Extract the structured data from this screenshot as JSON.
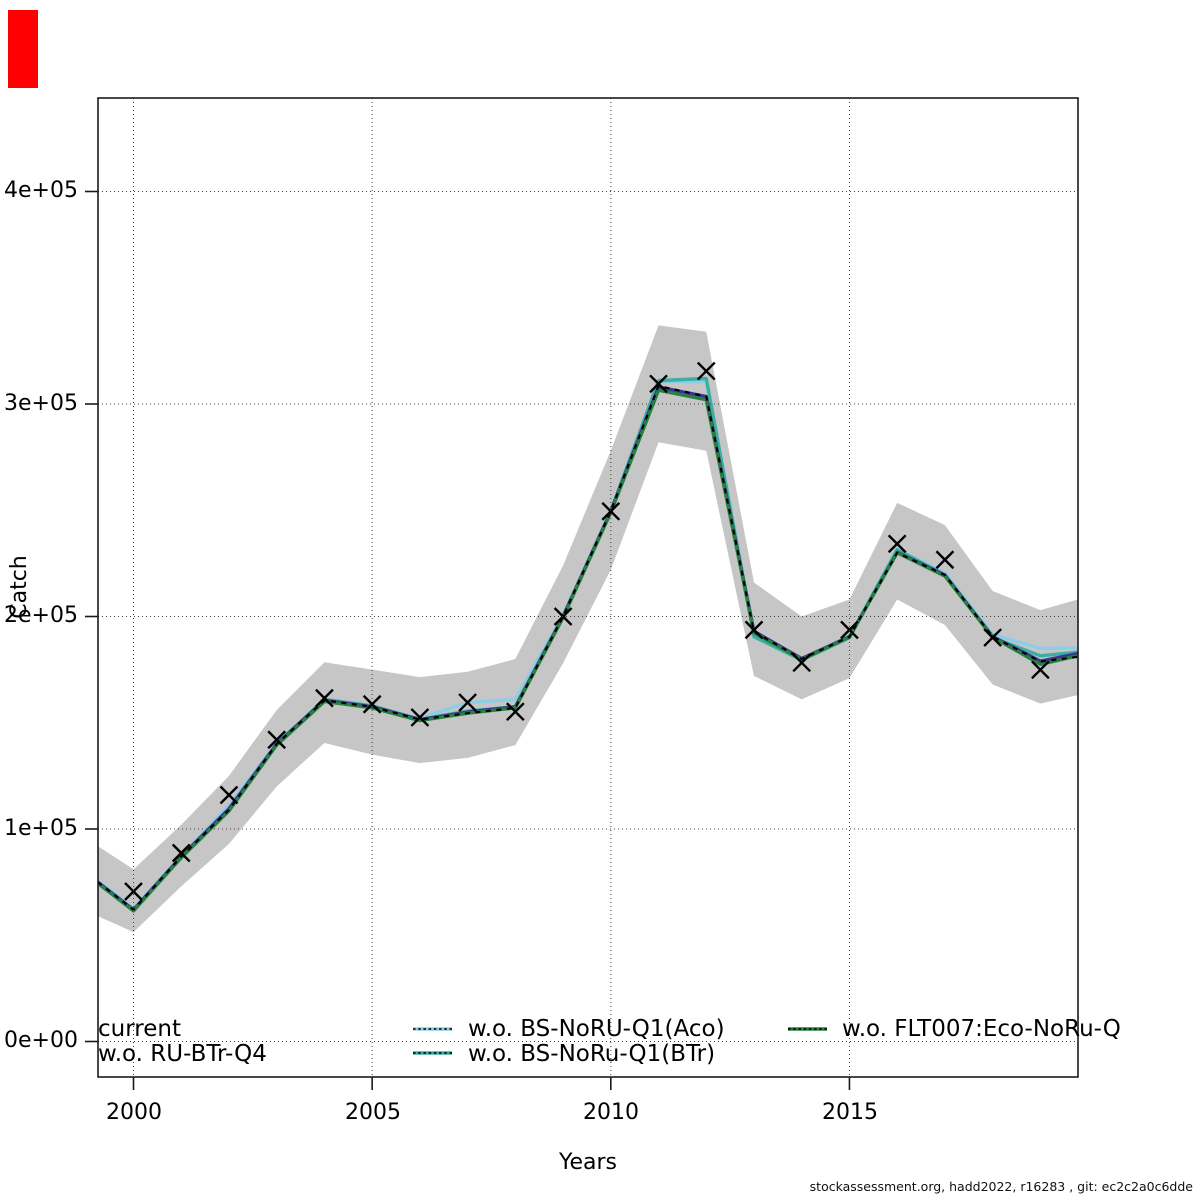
{
  "overlay_marker": {
    "color": "#ff0000"
  },
  "ylabel": "Catch",
  "xlabel": "Years",
  "footer": "stockassessment.org, hadd2022, r16283 , git: ec2c2a0c6dde",
  "axes": {
    "y_ticks": [
      {
        "label": "0e+00",
        "value": 0
      },
      {
        "label": "1e+05",
        "value": 100000
      },
      {
        "label": "2e+05",
        "value": 200000
      },
      {
        "label": "3e+05",
        "value": 300000
      },
      {
        "label": "4e+05",
        "value": 400000
      }
    ],
    "x_ticks": [
      {
        "label": "2000",
        "value": 2000
      },
      {
        "label": "2005",
        "value": 2005
      },
      {
        "label": "2010",
        "value": 2010
      },
      {
        "label": "2015",
        "value": 2015
      }
    ]
  },
  "legend": {
    "entries": [
      {
        "label": "current",
        "color": "#000000",
        "swatch_visible": false
      },
      {
        "label": "w.o. RU-BTr-Q4",
        "color": "#3e3193",
        "swatch_visible": false
      },
      {
        "label": "w.o. BS-NoRU-Q1(Aco)",
        "color": "#8dcde6",
        "swatch_visible": true
      },
      {
        "label": "w.o. BS-NoRu-Q1(BTr)",
        "color": "#3bafa0",
        "swatch_visible": true
      },
      {
        "label": "w.o. FLT007:Eco-NoRu-Q",
        "color": "#26803f",
        "swatch_visible": true
      }
    ]
  },
  "chart_data": {
    "type": "line",
    "title": "",
    "xlabel": "Years",
    "ylabel": "Catch",
    "xlim": [
      1999.25,
      2019.78
    ],
    "ylim": [
      -16700,
      443800
    ],
    "grid": true,
    "x": [
      1999.25,
      2000,
      2001,
      2002,
      2003,
      2004,
      2005,
      2006,
      2007,
      2008,
      2009,
      2010,
      2011,
      2012,
      2013,
      2014,
      2015,
      2016,
      2017,
      2018,
      2019,
      2019.78
    ],
    "series": [
      {
        "name": "current",
        "color": "#000000",
        "style": "dashed",
        "values": [
          75000,
          62000,
          87000,
          109000,
          140000,
          160500,
          157500,
          151500,
          154500,
          157000,
          200000,
          249500,
          308500,
          303500,
          192800,
          180000,
          190500,
          230000,
          219500,
          190500,
          178800,
          181000
        ]
      },
      {
        "name": "w.o. RU-BTr-Q4",
        "color": "#3e3193",
        "style": "solid",
        "values": [
          75000,
          62000,
          87000,
          109500,
          140000,
          160500,
          157500,
          151500,
          155000,
          157500,
          200000,
          249500,
          308000,
          303500,
          193000,
          180200,
          190500,
          230200,
          219500,
          190500,
          179000,
          182500
        ]
      },
      {
        "name": "w.o. BS-NoRU-Q1(Aco)",
        "color": "#8dcde6",
        "style": "solid",
        "values": [
          75500,
          62500,
          87500,
          111000,
          140500,
          160500,
          157500,
          152000,
          159500,
          161000,
          200500,
          250000,
          310500,
          310500,
          192500,
          180000,
          190800,
          231500,
          220500,
          191500,
          185000,
          185200
        ]
      },
      {
        "name": "w.o. BS-NoRu-Q1(BTr)",
        "color": "#3bafa0",
        "style": "solid",
        "values": [
          75000,
          61500,
          87000,
          109000,
          140000,
          161000,
          158000,
          151500,
          155500,
          157500,
          200000,
          249500,
          311000,
          312000,
          190500,
          179500,
          190000,
          231500,
          219500,
          190000,
          181500,
          183200
        ]
      },
      {
        "name": "w.o. FLT007:Eco-NoRu-Q",
        "color": "#26803f",
        "style": "solid",
        "values": [
          74500,
          61500,
          86500,
          108500,
          139500,
          160000,
          157000,
          151000,
          154500,
          157000,
          199500,
          249000,
          306500,
          302000,
          192300,
          179800,
          190300,
          230000,
          219000,
          190300,
          177500,
          181500
        ]
      }
    ],
    "band": {
      "color": "#c6c6c6",
      "lower": [
        59000,
        51500,
        73000,
        93000,
        120000,
        140500,
        135000,
        131000,
        133500,
        139500,
        178000,
        222000,
        282000,
        278000,
        172000,
        161000,
        171000,
        208000,
        196000,
        168000,
        159000,
        163000
      ],
      "upper": [
        92000,
        81000,
        102000,
        125000,
        156000,
        178500,
        175000,
        171500,
        174000,
        180000,
        224000,
        278000,
        337000,
        334000,
        216000,
        200000,
        208000,
        253500,
        243000,
        212000,
        203000,
        208000
      ]
    },
    "observations": {
      "marker": "x",
      "color": "#000000",
      "years": [
        2000,
        2001,
        2002,
        2003,
        2004,
        2005,
        2006,
        2007,
        2008,
        2009,
        2010,
        2011,
        2012,
        2013,
        2014,
        2015,
        2016,
        2017,
        2018,
        2019
      ],
      "values": [
        70600,
        88700,
        116000,
        142000,
        161600,
        158700,
        152500,
        159500,
        155200,
        200000,
        249500,
        309500,
        315500,
        193700,
        178200,
        193700,
        234200,
        226700,
        190100,
        174900
      ]
    }
  }
}
